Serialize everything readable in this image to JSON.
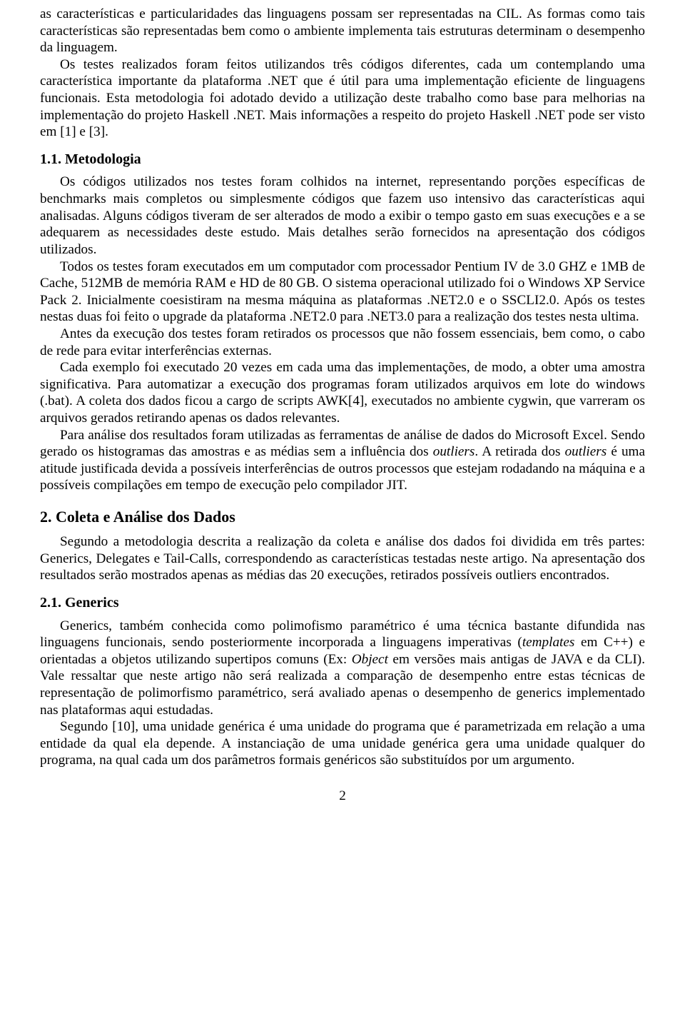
{
  "para1": "as características e particularidades das linguagens possam ser representadas na CIL. As formas como tais características são representadas bem como o ambiente implementa tais estruturas determinam o desempenho da linguagem.",
  "para2": "Os testes realizados foram feitos utilizandos três códigos diferentes, cada um contemplando uma característica importante da plataforma .NET que é útil para uma implementação eficiente de linguagens funcionais. Esta metodologia foi adotado devido a utilização deste trabalho como base para melhorias na implementação do projeto Haskell .NET. Mais informações a respeito do projeto Haskell .NET pode ser visto em [1] e [3].",
  "sec11_title": "1.1. Metodologia",
  "para3": "Os códigos utilizados nos testes foram colhidos na internet, representando porções específicas de benchmarks mais completos ou simplesmente códigos que fazem uso intensivo das características aqui analisadas. Alguns códigos tiveram de ser alterados de modo a exibir o tempo gasto em suas execuções e a se adequarem as necessidades deste estudo. Mais detalhes serão fornecidos na apresentação dos códigos utilizados.",
  "para4": "Todos os testes foram executados em um computador com processador Pentium IV de 3.0 GHZ e 1MB de Cache, 512MB de memória RAM e HD de 80 GB. O sistema operacional utilizado foi o Windows XP Service Pack 2. Inicialmente coesistiram na mesma máquina as plataformas .NET2.0 e o SSCLI2.0. Após os testes nestas duas foi feito o upgrade da plataforma .NET2.0 para .NET3.0 para a realização dos testes nesta ultima.",
  "para5": "Antes da execução dos testes foram retirados os processos que não fossem essenciais, bem como, o cabo de rede para evitar interferências externas.",
  "para6": "Cada exemplo foi executado 20 vezes em cada uma das implementações, de modo, a obter uma amostra significativa. Para automatizar a execução dos programas foram utilizados arquivos em lote do windows (.bat). A coleta dos dados ficou a cargo de scripts AWK[4], executados no ambiente cygwin, que varreram os arquivos gerados retirando apenas os dados relevantes.",
  "para7_a": "Para análise dos resultados foram utilizadas as ferramentas de análise de dados do Microsoft Excel. Sendo gerado os histogramas das amostras e as médias sem a influência dos ",
  "para7_it1": "outliers",
  "para7_b": ". A retirada dos ",
  "para7_it2": "outliers",
  "para7_c": " é uma atitude justificada devida a possíveis interferências de outros processos que estejam rodadando na máquina e a possíveis compilações em tempo de execução pelo compilador JIT.",
  "sec2_title": "2. Coleta e Análise dos Dados",
  "para8": "Segundo a metodologia descrita a realização da coleta e análise dos dados foi dividida em três partes: Generics, Delegates e Tail-Calls, correspondendo as características testadas neste artigo. Na apresentação dos resultados serão mostrados apenas as médias das 20 execuções, retirados possíveis outliers encontrados.",
  "sec21_title": "2.1. Generics",
  "para9_a": "Generics, também conhecida como polimofismo paramétrico é uma técnica bastante difundida nas linguagens funcionais, sendo posteriormente incorporada a linguagens imperativas (",
  "para9_it1": "templates",
  "para9_b": " em C++) e orientadas a objetos utilizando supertipos comuns (Ex: ",
  "para9_it2": "Object",
  "para9_c": " em versões mais antigas de JAVA e da CLI). Vale ressaltar que neste artigo não será realizada a comparação de desempenho entre estas técnicas de representação de polimorfismo paramétrico, será avaliado apenas o desempenho de generics implementado nas plataformas aqui estudadas.",
  "para10": "Segundo [10], uma unidade genérica é uma unidade do programa que é parametrizada em relação a uma entidade da qual ela depende. A instanciação de uma unidade genérica gera uma unidade qualquer do programa, na qual cada um dos parâmetros formais genéricos são substituídos por um argumento.",
  "pagenum": "2"
}
